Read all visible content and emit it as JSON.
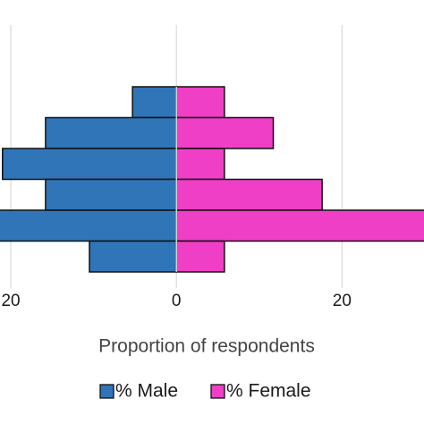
{
  "chart_data": {
    "type": "pyramid",
    "x_label": "Proportion of respondents",
    "categories": [
      null,
      null,
      null,
      null,
      null,
      null
    ],
    "series": [
      {
        "name": "% Male",
        "color": "#2f75b8",
        "values": [
          -5.3,
          -15.8,
          -21.0,
          -15.8,
          -22,
          -10.5
        ]
      },
      {
        "name": "% Female",
        "color": "#ef3fc6",
        "values": [
          5.8,
          11.7,
          5.8,
          17.6,
          31,
          5.8
        ]
      }
    ],
    "xlim": [
      -21.3,
      29.9
    ],
    "xticks": [
      {
        "value": -20,
        "label": "20"
      },
      0,
      20
    ],
    "grid": true,
    "legend": "bottom"
  }
}
